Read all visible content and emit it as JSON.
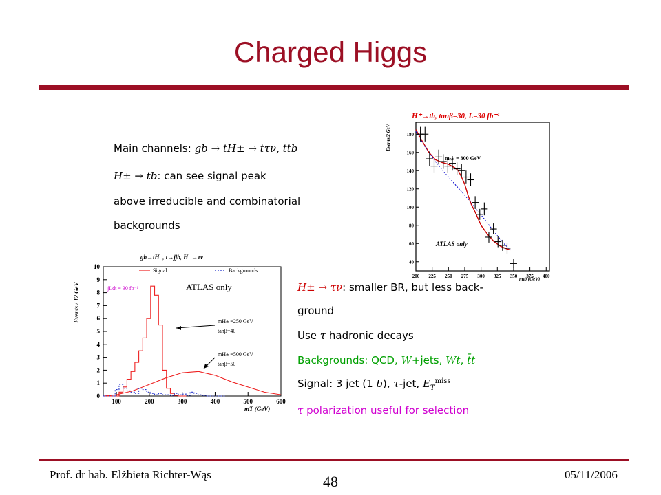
{
  "slide": {
    "title": "Charged Higgs",
    "footer_left": "Prof. dr hab. Elżbieta Richter-Wąs",
    "page_number": "48",
    "footer_date": "05/11/2006"
  },
  "text_top": {
    "line1_label": "Main channels:",
    "line1_formula": "gb → tH± → tτν, ttb",
    "line2_formula": "H± → tb",
    "line2_text": ": can see signal peak",
    "line3": "above     irreducible     and     combinatorial",
    "line4": "backgrounds"
  },
  "text_bottom": {
    "l1_formula": "H± → τν",
    "l1_text": ":  smaller BR, but less back-",
    "l2": "ground",
    "l3_a": "Use ",
    "l3_tau": "τ",
    "l3_b": " hadronic decays",
    "l4_label": "Backgrounds: QCD, ",
    "l4_w": "W",
    "l4_jets": "+jets, ",
    "l4_wt": "Wt",
    "l4_sep": ", ",
    "l4_tt": "t̄t",
    "l5_a": "Signal: 3 jet (1 ",
    "l5_b": "b",
    "l5_c": "), ",
    "l5_tau": "τ",
    "l5_d": "-jet, ",
    "l5_et": "E",
    "l5_sub": "T",
    "l5_sup": "miss",
    "l6_tau": "τ",
    "l6_text": " polarization useful for selection"
  },
  "chart_data": [
    {
      "type": "line",
      "title": "H⁺→tb, tanβ=30, L=30 fb⁻¹",
      "annotation_mass": "mₕ₊ = 300 GeV",
      "annotation_atlas": "ATLAS only",
      "xlabel": "mₜb (GeV)",
      "ylabel": "Events/2 GeV",
      "xlim": [
        200,
        405
      ],
      "ylim": [
        30,
        193
      ],
      "xticks": [
        200,
        225,
        250,
        275,
        300,
        325,
        350,
        375,
        400
      ],
      "yticks": [
        40,
        60,
        80,
        100,
        120,
        140,
        160,
        180
      ],
      "points": [
        {
          "x": 207,
          "y": 180,
          "err": 8
        },
        {
          "x": 214,
          "y": 180,
          "err": 8
        },
        {
          "x": 221,
          "y": 153,
          "err": 8
        },
        {
          "x": 228,
          "y": 145,
          "err": 7
        },
        {
          "x": 235,
          "y": 155,
          "err": 8
        },
        {
          "x": 242,
          "y": 150,
          "err": 8
        },
        {
          "x": 249,
          "y": 145,
          "err": 7
        },
        {
          "x": 256,
          "y": 148,
          "err": 8
        },
        {
          "x": 263,
          "y": 142,
          "err": 7
        },
        {
          "x": 270,
          "y": 140,
          "err": 7
        },
        {
          "x": 277,
          "y": 133,
          "err": 7
        },
        {
          "x": 284,
          "y": 130,
          "err": 7
        },
        {
          "x": 291,
          "y": 105,
          "err": 7
        },
        {
          "x": 298,
          "y": 92,
          "err": 6
        },
        {
          "x": 305,
          "y": 98,
          "err": 7
        },
        {
          "x": 312,
          "y": 67,
          "err": 6
        },
        {
          "x": 319,
          "y": 76,
          "err": 6
        },
        {
          "x": 326,
          "y": 62,
          "err": 6
        },
        {
          "x": 333,
          "y": 58,
          "err": 6
        },
        {
          "x": 340,
          "y": 55,
          "err": 6
        },
        {
          "x": 350,
          "y": 38,
          "err": 5
        }
      ],
      "series": [
        {
          "name": "signal+background fit",
          "color": "#cc0000",
          "x": [
            200,
            210,
            220,
            230,
            240,
            250,
            260,
            265,
            270,
            275,
            280,
            285,
            290,
            295,
            300,
            310,
            320,
            330,
            340,
            345
          ],
          "y": [
            185,
            172,
            160,
            152,
            149,
            147,
            143,
            140,
            133,
            125,
            113,
            103,
            96,
            88,
            80,
            70,
            62,
            57,
            54,
            53
          ]
        },
        {
          "name": "background",
          "color": "#0000cc",
          "x": [
            200,
            215,
            230,
            245,
            260,
            275,
            290,
            305,
            320,
            335,
            345
          ],
          "y": [
            183,
            165,
            150,
            137,
            125,
            113,
            100,
            87,
            73,
            60,
            53
          ]
        }
      ]
    },
    {
      "type": "line",
      "title": "gb→tH⁻, t→jjb, H⁻→τν",
      "legend": [
        "Signal",
        "Backgrounds"
      ],
      "annotation_lumi": "∫Ldt = 30 fb⁻¹",
      "annotation_atlas": "ATLAS only",
      "annotation_250": [
        "mH± =250 GeV",
        "tanβ=40"
      ],
      "annotation_500": [
        "mH± =500 GeV",
        "tanβ=50"
      ],
      "xlabel": "mT (GeV)",
      "ylabel": "Events / 12 GeV",
      "xlim": [
        60,
        600
      ],
      "ylim": [
        0,
        10
      ],
      "xticks": [
        100,
        200,
        300,
        400,
        500,
        600
      ],
      "yticks": [
        0,
        1,
        2,
        3,
        4,
        5,
        6,
        7,
        8,
        9,
        10
      ],
      "series": [
        {
          "name": "Signal mH±=250 GeV",
          "color": "#ee2222",
          "step": true,
          "x": [
            60,
            72,
            84,
            96,
            108,
            120,
            132,
            144,
            156,
            168,
            180,
            192,
            204,
            216,
            228,
            240,
            252,
            264,
            276,
            288,
            300
          ],
          "y": [
            0,
            0,
            0,
            0,
            0.3,
            0.7,
            1.3,
            1.9,
            2.6,
            3.5,
            4.5,
            6.0,
            8.5,
            7.8,
            5.5,
            2.0,
            0.6,
            0.2,
            0.05,
            0,
            0
          ]
        },
        {
          "name": "Signal mH±=500 GeV",
          "color": "#ee2222",
          "step": false,
          "x": [
            60,
            100,
            150,
            200,
            250,
            300,
            350,
            400,
            450,
            500,
            550,
            600
          ],
          "y": [
            0,
            0.1,
            0.4,
            0.9,
            1.4,
            1.8,
            1.9,
            1.6,
            1.1,
            0.7,
            0.3,
            0.1
          ]
        },
        {
          "name": "Backgrounds",
          "color": "#2233cc",
          "step": true,
          "x": [
            60,
            72,
            84,
            96,
            108,
            120,
            132,
            144,
            156,
            168,
            180,
            192,
            204,
            216,
            228,
            240,
            252,
            264,
            276,
            288,
            300,
            312,
            324,
            336,
            348,
            360,
            372,
            384,
            396,
            408,
            420
          ],
          "y": [
            0,
            0,
            0,
            0.5,
            0.9,
            0.6,
            0.4,
            0.3,
            0.2,
            0.6,
            0.5,
            0.3,
            0.2,
            0.1,
            0.2,
            0.1,
            0.1,
            0.05,
            0.2,
            0.1,
            0.15,
            0.05,
            0.3,
            0.2,
            0.1,
            0.05,
            0,
            0,
            0,
            0,
            0
          ]
        }
      ]
    }
  ]
}
